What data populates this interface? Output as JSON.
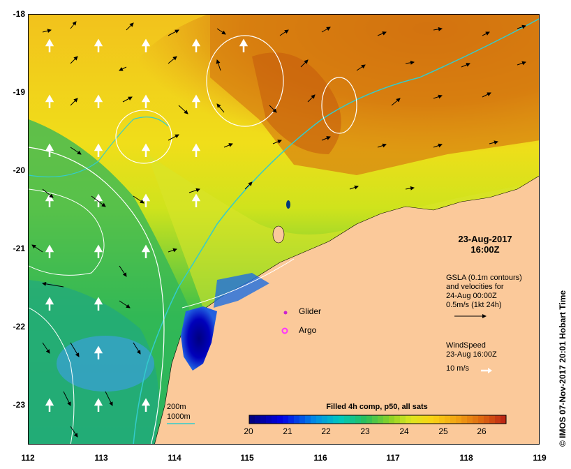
{
  "map": {
    "lon_ticks": [
      "112",
      "113",
      "114",
      "115",
      "116",
      "117",
      "118",
      "119"
    ],
    "lat_ticks": [
      "-18",
      "-19",
      "-20",
      "-21",
      "-22",
      "-23"
    ],
    "lon_range": [
      112,
      119
    ],
    "lat_range": [
      -23.5,
      -18
    ]
  },
  "timestamp": {
    "date": "23-Aug-2017",
    "time": "16:00Z"
  },
  "gsla_legend": {
    "line1": "GSLA (0.1m contours)",
    "line2": "and velocities for",
    "line3": "24-Aug 00:00Z",
    "line4": "0.5m/s (1kt 24h)"
  },
  "wind_legend": {
    "line1": "WindSpeed",
    "line2": "23-Aug 16:00Z",
    "line3": "10 m/s"
  },
  "markers": {
    "glider": {
      "label": "Glider",
      "color": "#cc22cc"
    },
    "argo": {
      "label": "Argo",
      "color": "#ff33ff"
    }
  },
  "bathymetry_legend": {
    "depth_200": {
      "label": "200m",
      "color": "#ffffff"
    },
    "depth_1000": {
      "label": "1000m",
      "color": "#33cccc"
    }
  },
  "colorbar": {
    "title": "Filled 4h comp, p50, all sats",
    "ticks": [
      "20",
      "21",
      "22",
      "23",
      "24",
      "25",
      "26"
    ],
    "range": [
      20,
      26.6
    ]
  },
  "credit": "© IMOS 07-Nov-2017 20:01 Hobart Time",
  "colors": {
    "land": "#fbc99a",
    "sst_warm": "#cc6611",
    "sst_cold": "#000099"
  }
}
